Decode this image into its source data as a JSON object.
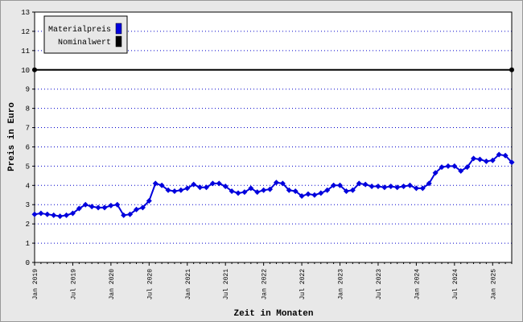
{
  "chart_data": {
    "type": "line",
    "ylabel": "Preis in Euro",
    "xlabel": "Zeit in Monaten",
    "categories": [
      "Jan 2019",
      null,
      null,
      null,
      null,
      null,
      "Jul 2019",
      null,
      null,
      null,
      null,
      null,
      "Jan 2020",
      null,
      null,
      null,
      null,
      null,
      "Jul 2020",
      null,
      null,
      null,
      null,
      null,
      "Jan 2021",
      null,
      null,
      null,
      null,
      null,
      "Jul 2021",
      null,
      null,
      null,
      null,
      null,
      "Jan 2022",
      null,
      null,
      null,
      null,
      null,
      "Jul 2022",
      null,
      null,
      null,
      null,
      null,
      "Jan 2023",
      null,
      null,
      null,
      null,
      null,
      "Jul 2023",
      null,
      null,
      null,
      null,
      null,
      "Jan 2024",
      null,
      null,
      null,
      null,
      null,
      "Jul 2024",
      null,
      null,
      null,
      null,
      null,
      "Jan 2025",
      null,
      null,
      null
    ],
    "series": [
      {
        "name": "Materialpreis",
        "color": "#0000dd",
        "values": [
          2.5,
          2.55,
          2.5,
          2.45,
          2.4,
          2.45,
          2.55,
          2.8,
          3.0,
          2.9,
          2.85,
          2.85,
          2.95,
          3.0,
          2.45,
          2.5,
          2.75,
          2.85,
          3.2,
          4.1,
          4.0,
          3.75,
          3.7,
          3.75,
          3.85,
          4.05,
          3.9,
          3.9,
          4.1,
          4.1,
          3.95,
          3.7,
          3.6,
          3.65,
          3.85,
          3.65,
          3.75,
          3.8,
          4.15,
          4.1,
          3.75,
          3.7,
          3.45,
          3.55,
          3.5,
          3.6,
          3.75,
          4.0,
          4.0,
          3.7,
          3.75,
          4.1,
          4.05,
          3.95,
          3.95,
          3.9,
          3.95,
          3.9,
          3.95,
          4.0,
          3.85,
          3.85,
          4.1,
          4.65,
          4.95,
          5.0,
          5.0,
          4.75,
          4.95,
          5.4,
          5.35,
          5.25,
          5.3,
          5.6,
          5.55,
          5.2
        ]
      },
      {
        "name": "Nominalwert",
        "color": "#000000",
        "values": [
          10,
          10,
          10,
          10,
          10,
          10,
          10,
          10,
          10,
          10,
          10,
          10,
          10,
          10,
          10,
          10,
          10,
          10,
          10,
          10,
          10,
          10,
          10,
          10,
          10,
          10,
          10,
          10,
          10,
          10,
          10,
          10,
          10,
          10,
          10,
          10,
          10,
          10,
          10,
          10,
          10,
          10,
          10,
          10,
          10,
          10,
          10,
          10,
          10,
          10,
          10,
          10,
          10,
          10,
          10,
          10,
          10,
          10,
          10,
          10,
          10,
          10,
          10,
          10,
          10,
          10,
          10,
          10,
          10,
          10,
          10,
          10,
          10,
          10,
          10,
          10
        ]
      }
    ],
    "ylim": [
      0,
      13
    ],
    "yticks": [
      0,
      1,
      2,
      3,
      4,
      5,
      6,
      7,
      8,
      9,
      10,
      11,
      12,
      13
    ],
    "grid": true,
    "legend": "upper left"
  }
}
